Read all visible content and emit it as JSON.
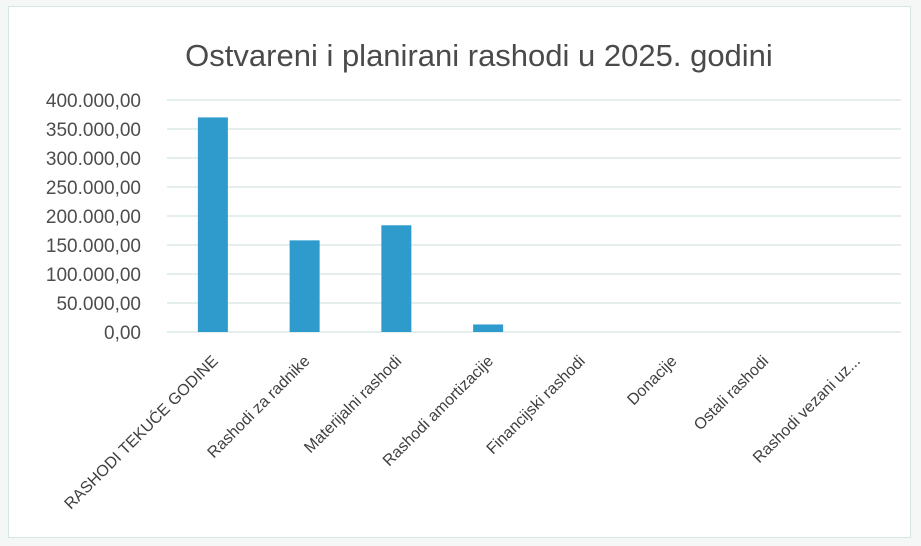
{
  "chart_data": {
    "type": "bar",
    "title": "Ostvareni i planirani rashodi  u 2025. godini",
    "categories": [
      "RASHODI TEKUĆE GODINE",
      "Rashodi za radnike",
      "Materijalni rashodi",
      "Rashodi amortizacije",
      "Financijski rashodi",
      "Donacije",
      "Ostali rashodi",
      "Rashodi vezani uz..."
    ],
    "values": [
      370000,
      158000,
      184000,
      13000,
      0,
      0,
      0,
      0
    ],
    "ylim": [
      0,
      400000
    ],
    "yticks": [
      0,
      50000,
      100000,
      150000,
      200000,
      250000,
      300000,
      350000,
      400000
    ],
    "ytick_labels": [
      "0,00",
      "50.000,00",
      "100.000,00",
      "150.000,00",
      "200.000,00",
      "250.000,00",
      "300.000,00",
      "350.000,00",
      "400.000,00"
    ],
    "xlabel": "",
    "ylabel": "",
    "grid": true,
    "legend": false,
    "colors": {
      "bar": "#2e9bcc",
      "grid": "#d4e4e1",
      "text": "#4a4a4a"
    }
  }
}
